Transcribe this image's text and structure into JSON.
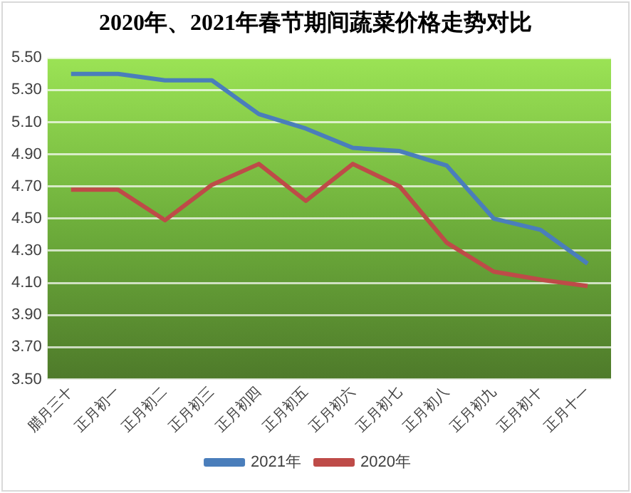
{
  "chart_data": {
    "type": "line",
    "title": "2020年、2021年春节期间蔬菜价格走势对比",
    "categories": [
      "腊月三十",
      "正月初一",
      "正月初二",
      "正月初三",
      "正月初四",
      "正月初五",
      "正月初六",
      "正月初七",
      "正月初八",
      "正月初九",
      "正月初十",
      "正月十一"
    ],
    "series": [
      {
        "name": "2021年",
        "color": "#4a7ebb",
        "values": [
          5.4,
          5.4,
          5.36,
          5.36,
          5.15,
          5.06,
          4.94,
          4.92,
          4.83,
          4.5,
          4.43,
          4.22
        ]
      },
      {
        "name": "2020年",
        "color": "#be4b48",
        "values": [
          4.68,
          4.68,
          4.49,
          4.71,
          4.84,
          4.61,
          4.84,
          4.7,
          4.35,
          4.17,
          4.12,
          4.08
        ]
      }
    ],
    "ylim": [
      3.5,
      5.5
    ],
    "yticks": [
      {
        "value": 3.5,
        "label": "3.50"
      },
      {
        "value": 3.7,
        "label": "3.70"
      },
      {
        "value": 3.9,
        "label": "3.90"
      },
      {
        "value": 4.1,
        "label": "4.10"
      },
      {
        "value": 4.3,
        "label": "4.30"
      },
      {
        "value": 4.5,
        "label": "4.50"
      },
      {
        "value": 4.7,
        "label": "4.70"
      },
      {
        "value": 4.9,
        "label": "4.90"
      },
      {
        "value": 5.1,
        "label": "5.10"
      },
      {
        "value": 5.3,
        "label": "5.30"
      },
      {
        "value": 5.5,
        "label": "5.50"
      }
    ],
    "grid": "y",
    "legend": "bottom",
    "marker": "none",
    "line_style": "solid"
  }
}
